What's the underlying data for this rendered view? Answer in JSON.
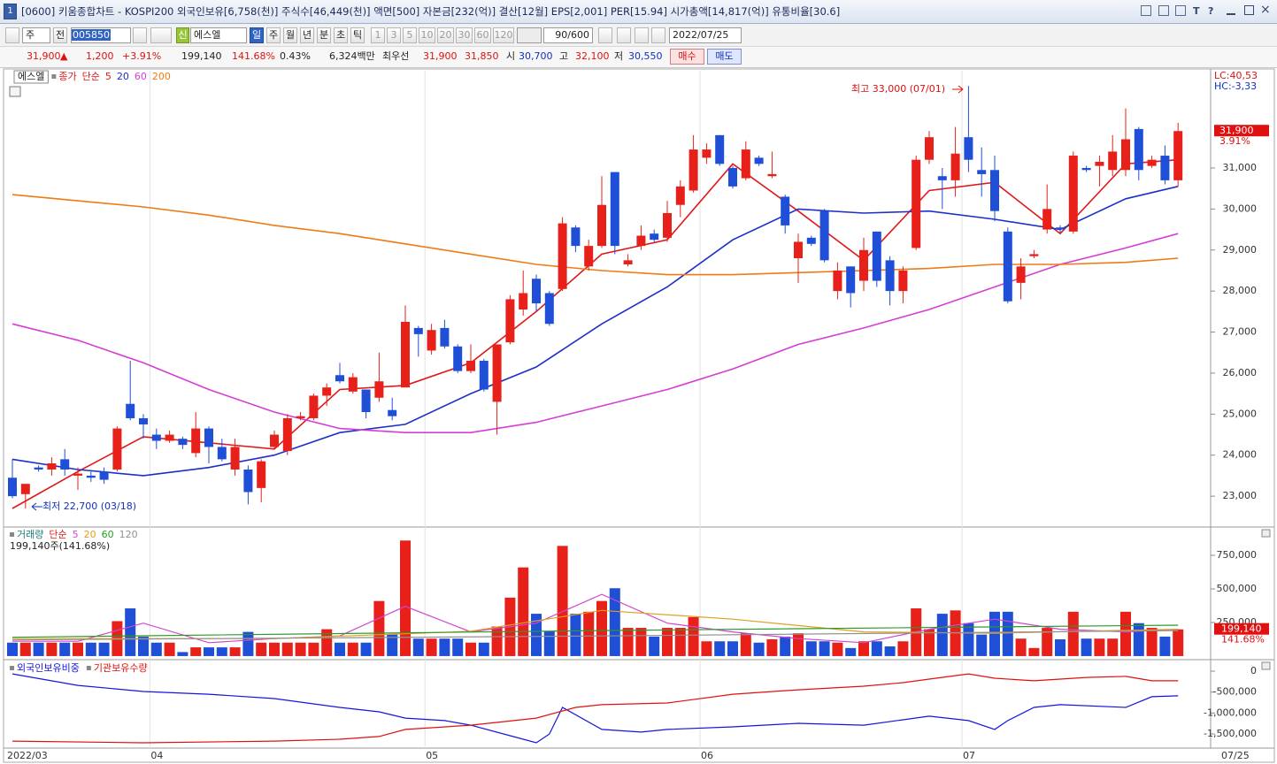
{
  "title_bar": {
    "icon": "1",
    "text": "[0600] 키움종합차트 - KOSPI200 외국인보유[6,758(천)] 주식수[46,449(천)] 액면[500] 자본금[232(억)] 결산[12월] EPS[2,001] PER[15.94] 시가총액[14,817(억)] 유통비율[30.6]",
    "tools": [
      "T",
      "?"
    ]
  },
  "toolbar": {
    "period_type": "주",
    "prev": "전",
    "code": "005850",
    "new_badge": "신",
    "name": "에스엘",
    "intervals": [
      "일",
      "주",
      "월",
      "년",
      "분",
      "초",
      "틱"
    ],
    "minutes": [
      "1",
      "3",
      "5",
      "10",
      "20",
      "30",
      "60",
      "120"
    ],
    "count": "90/600",
    "date": "2022/07/25"
  },
  "quote": {
    "price": "31,900",
    "arrow": "▲",
    "change": "1,200",
    "change_pct": "+3.91%",
    "volume": "199,140",
    "volume_ratio": "141.68%",
    "turnover": "0.43%",
    "amount": "6,324백만",
    "best_label": "최우선",
    "ask": "31,900",
    "bid": "31,850",
    "open_label": "시",
    "open": "30,700",
    "high_label": "고",
    "high": "32,100",
    "low_label": "저",
    "low": "30,550",
    "buy": "매수",
    "sell": "매도"
  },
  "chart_data": [
    {
      "type": "candlestick",
      "name": "에스엘",
      "legend": {
        "price": "종가",
        "method": "단순"
      },
      "categories": [
        "2022/03",
        null,
        null,
        null,
        null,
        null,
        null,
        null,
        null,
        null,
        null,
        "04",
        null,
        null,
        null,
        null,
        null,
        null,
        null,
        null,
        null,
        null,
        null,
        null,
        null,
        null,
        null,
        null,
        null,
        null,
        null,
        null,
        "05",
        null,
        null,
        null,
        null,
        null,
        null,
        null,
        null,
        null,
        null,
        null,
        null,
        null,
        null,
        null,
        null,
        null,
        null,
        null,
        null,
        "06",
        null,
        null,
        null,
        null,
        null,
        null,
        null,
        null,
        null,
        null,
        null,
        null,
        null,
        null,
        null,
        null,
        null,
        null,
        null,
        "07",
        null,
        null,
        null,
        null,
        null,
        null,
        null,
        null,
        null,
        null,
        null,
        null,
        null,
        null,
        null,
        "07/25"
      ],
      "open": [
        23450,
        23050,
        23700,
        23650,
        23900,
        23500,
        23500,
        23600,
        23650,
        25250,
        24900,
        24500,
        24350,
        24400,
        24050,
        24650,
        24200,
        23650,
        23650,
        23200,
        24200,
        24100,
        24900,
        24900,
        25450,
        25950,
        25550,
        25600,
        25400,
        25100,
        25650,
        27100,
        26550,
        27100,
        26650,
        26050,
        26300,
        25300,
        26750,
        27550,
        28300,
        27950,
        28050,
        29550,
        28600,
        29100,
        30900,
        28650,
        29100,
        29400,
        29300,
        30100,
        30450,
        31250,
        31800,
        31000,
        30750,
        31250,
        30800,
        30300,
        28800,
        29300,
        29950,
        28000,
        28600,
        28250,
        29450,
        28750,
        28000,
        29050,
        31200,
        30800,
        30700,
        31750,
        30950,
        30950,
        29450,
        28200,
        28850,
        29500,
        29550,
        29450,
        31000,
        31050,
        30950,
        30950,
        31950,
        31050,
        31300,
        30700
      ],
      "high": [
        23900,
        23300,
        23750,
        23950,
        24150,
        23700,
        23600,
        23700,
        24700,
        26300,
        25000,
        24650,
        24600,
        24450,
        25050,
        24700,
        24400,
        24400,
        23750,
        23900,
        24600,
        25000,
        25050,
        25500,
        25750,
        26250,
        26000,
        25600,
        26500,
        25400,
        27650,
        27150,
        27200,
        27300,
        26700,
        26700,
        26350,
        26700,
        27900,
        28500,
        28400,
        28000,
        29800,
        29600,
        29250,
        30800,
        30900,
        28900,
        29600,
        29500,
        30200,
        30700,
        31800,
        31600,
        31800,
        31050,
        31650,
        31300,
        31400,
        30350,
        29400,
        29350,
        30000,
        28700,
        28600,
        29300,
        29450,
        28850,
        28600,
        31300,
        31900,
        31000,
        32000,
        33000,
        31500,
        31300,
        29550,
        28800,
        29000,
        30600,
        29600,
        31400,
        31050,
        31300,
        31800,
        32450,
        32000,
        31300,
        31550,
        32100
      ],
      "low": [
        22950,
        22700,
        23600,
        23500,
        23500,
        23150,
        23350,
        23300,
        23600,
        24850,
        24400,
        24150,
        24300,
        24150,
        23950,
        23800,
        23850,
        23500,
        22800,
        22850,
        24150,
        24000,
        24850,
        24850,
        25200,
        25750,
        25500,
        24900,
        25300,
        24850,
        25650,
        26400,
        26450,
        26600,
        26000,
        26000,
        25550,
        24500,
        26700,
        27400,
        27500,
        27150,
        28000,
        28950,
        28500,
        29050,
        28900,
        28600,
        29000,
        29200,
        29200,
        29800,
        30400,
        31100,
        31050,
        30500,
        30700,
        31050,
        30750,
        29400,
        28200,
        29100,
        28700,
        27800,
        27600,
        28000,
        28100,
        27650,
        27700,
        29000,
        31100,
        30000,
        30300,
        30900,
        30300,
        29700,
        27700,
        27800,
        28800,
        29400,
        29400,
        29400,
        30900,
        30550,
        30800,
        30800,
        30700,
        31000,
        30600,
        30550
      ],
      "close": [
        23000,
        23300,
        23650,
        23800,
        23650,
        23550,
        23450,
        23400,
        24650,
        24900,
        24750,
        24350,
        24500,
        24250,
        24650,
        24200,
        23900,
        24200,
        23100,
        23850,
        24500,
        24900,
        24950,
        25450,
        25650,
        25800,
        25900,
        25050,
        25800,
        24950,
        27250,
        26950,
        27050,
        26650,
        26050,
        26300,
        25600,
        26700,
        27800,
        27950,
        27700,
        27200,
        29650,
        29100,
        29100,
        30100,
        29100,
        28750,
        29350,
        29250,
        29900,
        30550,
        31450,
        31450,
        31100,
        30550,
        31450,
        31100,
        30850,
        29600,
        29200,
        29150,
        28750,
        28500,
        27950,
        29000,
        28250,
        28000,
        28500,
        31200,
        31750,
        30700,
        31350,
        31200,
        30850,
        29950,
        27750,
        28600,
        28900,
        30000,
        29500,
        31300,
        30950,
        31150,
        31400,
        31700,
        30950,
        31200,
        30700,
        31900
      ],
      "up_color": "#e8201a",
      "down_color": "#1f4fd6",
      "series": [
        {
          "name": "5",
          "color": "#e01818",
          "x": [
            0,
            5,
            10,
            15,
            20,
            25,
            30,
            35,
            40,
            45,
            50,
            55,
            60,
            65,
            70,
            75,
            80,
            85,
            89
          ],
          "values": [
            22700,
            23600,
            24450,
            24300,
            24150,
            25600,
            25700,
            26250,
            27500,
            28900,
            29250,
            31100,
            29950,
            28750,
            30450,
            30650,
            29400,
            31100,
            31200
          ]
        },
        {
          "name": "20",
          "color": "#1c2fc8",
          "x": [
            0,
            5,
            10,
            15,
            20,
            25,
            30,
            35,
            40,
            45,
            50,
            55,
            60,
            65,
            70,
            75,
            80,
            85,
            89
          ],
          "values": [
            23900,
            23650,
            23500,
            23700,
            24000,
            24550,
            24750,
            25500,
            26150,
            27200,
            28100,
            29250,
            30000,
            29900,
            29950,
            29750,
            29500,
            30250,
            30550
          ]
        },
        {
          "name": "60",
          "color": "#d63cd6",
          "x": [
            0,
            5,
            10,
            15,
            20,
            25,
            30,
            35,
            40,
            45,
            50,
            55,
            60,
            65,
            70,
            75,
            80,
            85,
            89
          ],
          "values": [
            27200,
            26800,
            26250,
            25600,
            25050,
            24650,
            24550,
            24550,
            24800,
            25200,
            25600,
            26100,
            26700,
            27100,
            27550,
            28100,
            28650,
            29050,
            29400
          ]
        },
        {
          "name": "200",
          "color": "#f07a14",
          "x": [
            0,
            5,
            10,
            15,
            20,
            25,
            30,
            35,
            40,
            45,
            50,
            55,
            60,
            65,
            70,
            75,
            80,
            85,
            89
          ],
          "values": [
            30350,
            30200,
            30050,
            29850,
            29600,
            29400,
            29150,
            28900,
            28650,
            28500,
            28400,
            28400,
            28450,
            28500,
            28550,
            28650,
            28650,
            28700,
            28800
          ]
        }
      ],
      "ylim": [
        22270,
        33370
      ],
      "yticks": [
        {
          "value": 23000,
          "label": "23,000"
        },
        {
          "value": 24000,
          "label": "24,000"
        },
        {
          "value": 25000,
          "label": "25,000"
        },
        {
          "value": 26000,
          "label": "26,000"
        },
        {
          "value": 27000,
          "label": "27,000"
        },
        {
          "value": 28000,
          "label": "28,000"
        },
        {
          "value": 29000,
          "label": "29,000"
        },
        {
          "value": 30000,
          "label": "30,000"
        },
        {
          "value": 31000,
          "label": "31,000"
        }
      ],
      "annotations": {
        "high": "최고 33,000 (07/01)",
        "low": "최저 22,700 (03/18)"
      },
      "markers": {
        "lc": "LC:40,53",
        "hc": "HC:-3,33",
        "last_price": "31,900",
        "last_pct": "3.91%"
      }
    },
    {
      "type": "bar",
      "legend_label": "거래량",
      "method": "단순",
      "summary": "199,140주(141.68%)",
      "values": [
        100000,
        100000,
        100000,
        100000,
        100000,
        100000,
        100000,
        100000,
        260000,
        355000,
        145000,
        100000,
        100000,
        30000,
        65000,
        65000,
        65000,
        65000,
        180000,
        100000,
        100000,
        100000,
        100000,
        100000,
        200000,
        100000,
        100000,
        100000,
        410000,
        160000,
        860000,
        130000,
        130000,
        130000,
        130000,
        100000,
        100000,
        220000,
        435000,
        660000,
        315000,
        185000,
        820000,
        315000,
        330000,
        410000,
        505000,
        210000,
        210000,
        145000,
        210000,
        210000,
        290000,
        110000,
        110000,
        110000,
        170000,
        100000,
        125000,
        145000,
        170000,
        110000,
        110000,
        100000,
        60000,
        110000,
        110000,
        72000,
        110000,
        355000,
        200000,
        315000,
        340000,
        245000,
        160000,
        330000,
        330000,
        130000,
        60000,
        210000,
        125000,
        330000,
        130000,
        130000,
        130000,
        330000,
        245000,
        210000,
        145000,
        199140
      ],
      "up_color": "#e8201a",
      "down_color": "#1f4fd6",
      "series": [
        {
          "name": "5",
          "color": "#d046d0",
          "x": [
            0,
            5,
            10,
            15,
            20,
            25,
            30,
            35,
            40,
            45,
            50,
            55,
            60,
            65,
            70,
            75,
            80,
            85,
            89
          ],
          "values": [
            110000,
            110000,
            245000,
            100000,
            130000,
            150000,
            370000,
            180000,
            245000,
            460000,
            245000,
            180000,
            130000,
            100000,
            200000,
            275000,
            200000,
            180000,
            200000
          ]
        },
        {
          "name": "20",
          "color": "#e0a020",
          "x": [
            0,
            20,
            35,
            45,
            55,
            65,
            75,
            89
          ],
          "values": [
            130000,
            130000,
            185000,
            340000,
            275000,
            180000,
            170000,
            200000
          ]
        },
        {
          "name": "60",
          "color": "#2a9a2a",
          "x": [
            0,
            45,
            89
          ],
          "values": [
            140000,
            190000,
            230000
          ]
        },
        {
          "name": "120",
          "color": "#909090",
          "x": [
            0,
            45,
            89
          ],
          "values": [
            120000,
            150000,
            190000
          ]
        }
      ],
      "ylim": [
        -20000,
        954000
      ],
      "yticks": [
        {
          "value": 250000,
          "label": "250,000"
        },
        {
          "value": 500000,
          "label": "500,000"
        },
        {
          "value": 750000,
          "label": "750,000"
        }
      ],
      "last_label": "199,140",
      "last_ratio": "141.68%"
    },
    {
      "type": "line",
      "series": [
        {
          "name": "외국인보유비중",
          "color": "#1414e0",
          "x": [
            0,
            5,
            10,
            15,
            20,
            25,
            28,
            30,
            33,
            35,
            38,
            40,
            41,
            42,
            45,
            48,
            50,
            55,
            60,
            65,
            70,
            73,
            75,
            76,
            78,
            80,
            85,
            87,
            89
          ],
          "values": [
            -65000,
            -340000,
            -485000,
            -550000,
            -655000,
            -865000,
            -970000,
            -1120000,
            -1180000,
            -1290000,
            -1540000,
            -1710000,
            -1500000,
            -865000,
            -1390000,
            -1455000,
            -1390000,
            -1330000,
            -1245000,
            -1290000,
            -1075000,
            -1180000,
            -1390000,
            -1180000,
            -865000,
            -800000,
            -865000,
            -610000,
            -590000
          ]
        },
        {
          "name": "기관보유수량",
          "color": "#e01010",
          "x": [
            0,
            10,
            20,
            25,
            28,
            30,
            35,
            40,
            43,
            45,
            50,
            55,
            60,
            65,
            68,
            70,
            73,
            75,
            78,
            82,
            85,
            87,
            89
          ],
          "values": [
            -1670000,
            -1710000,
            -1670000,
            -1625000,
            -1560000,
            -1390000,
            -1290000,
            -1120000,
            -865000,
            -800000,
            -760000,
            -550000,
            -445000,
            -360000,
            -275000,
            -190000,
            -65000,
            -170000,
            -230000,
            -150000,
            -125000,
            -230000,
            -230000
          ]
        }
      ],
      "ylim": [
        -1815000,
        253000
      ],
      "yticks": [
        0,
        {
          "value": -500000,
          "label": "-500,000"
        },
        {
          "value": -1000000,
          "label": "-1,000,000"
        },
        {
          "value": -1500000,
          "label": "-1,500,000"
        }
      ]
    }
  ]
}
